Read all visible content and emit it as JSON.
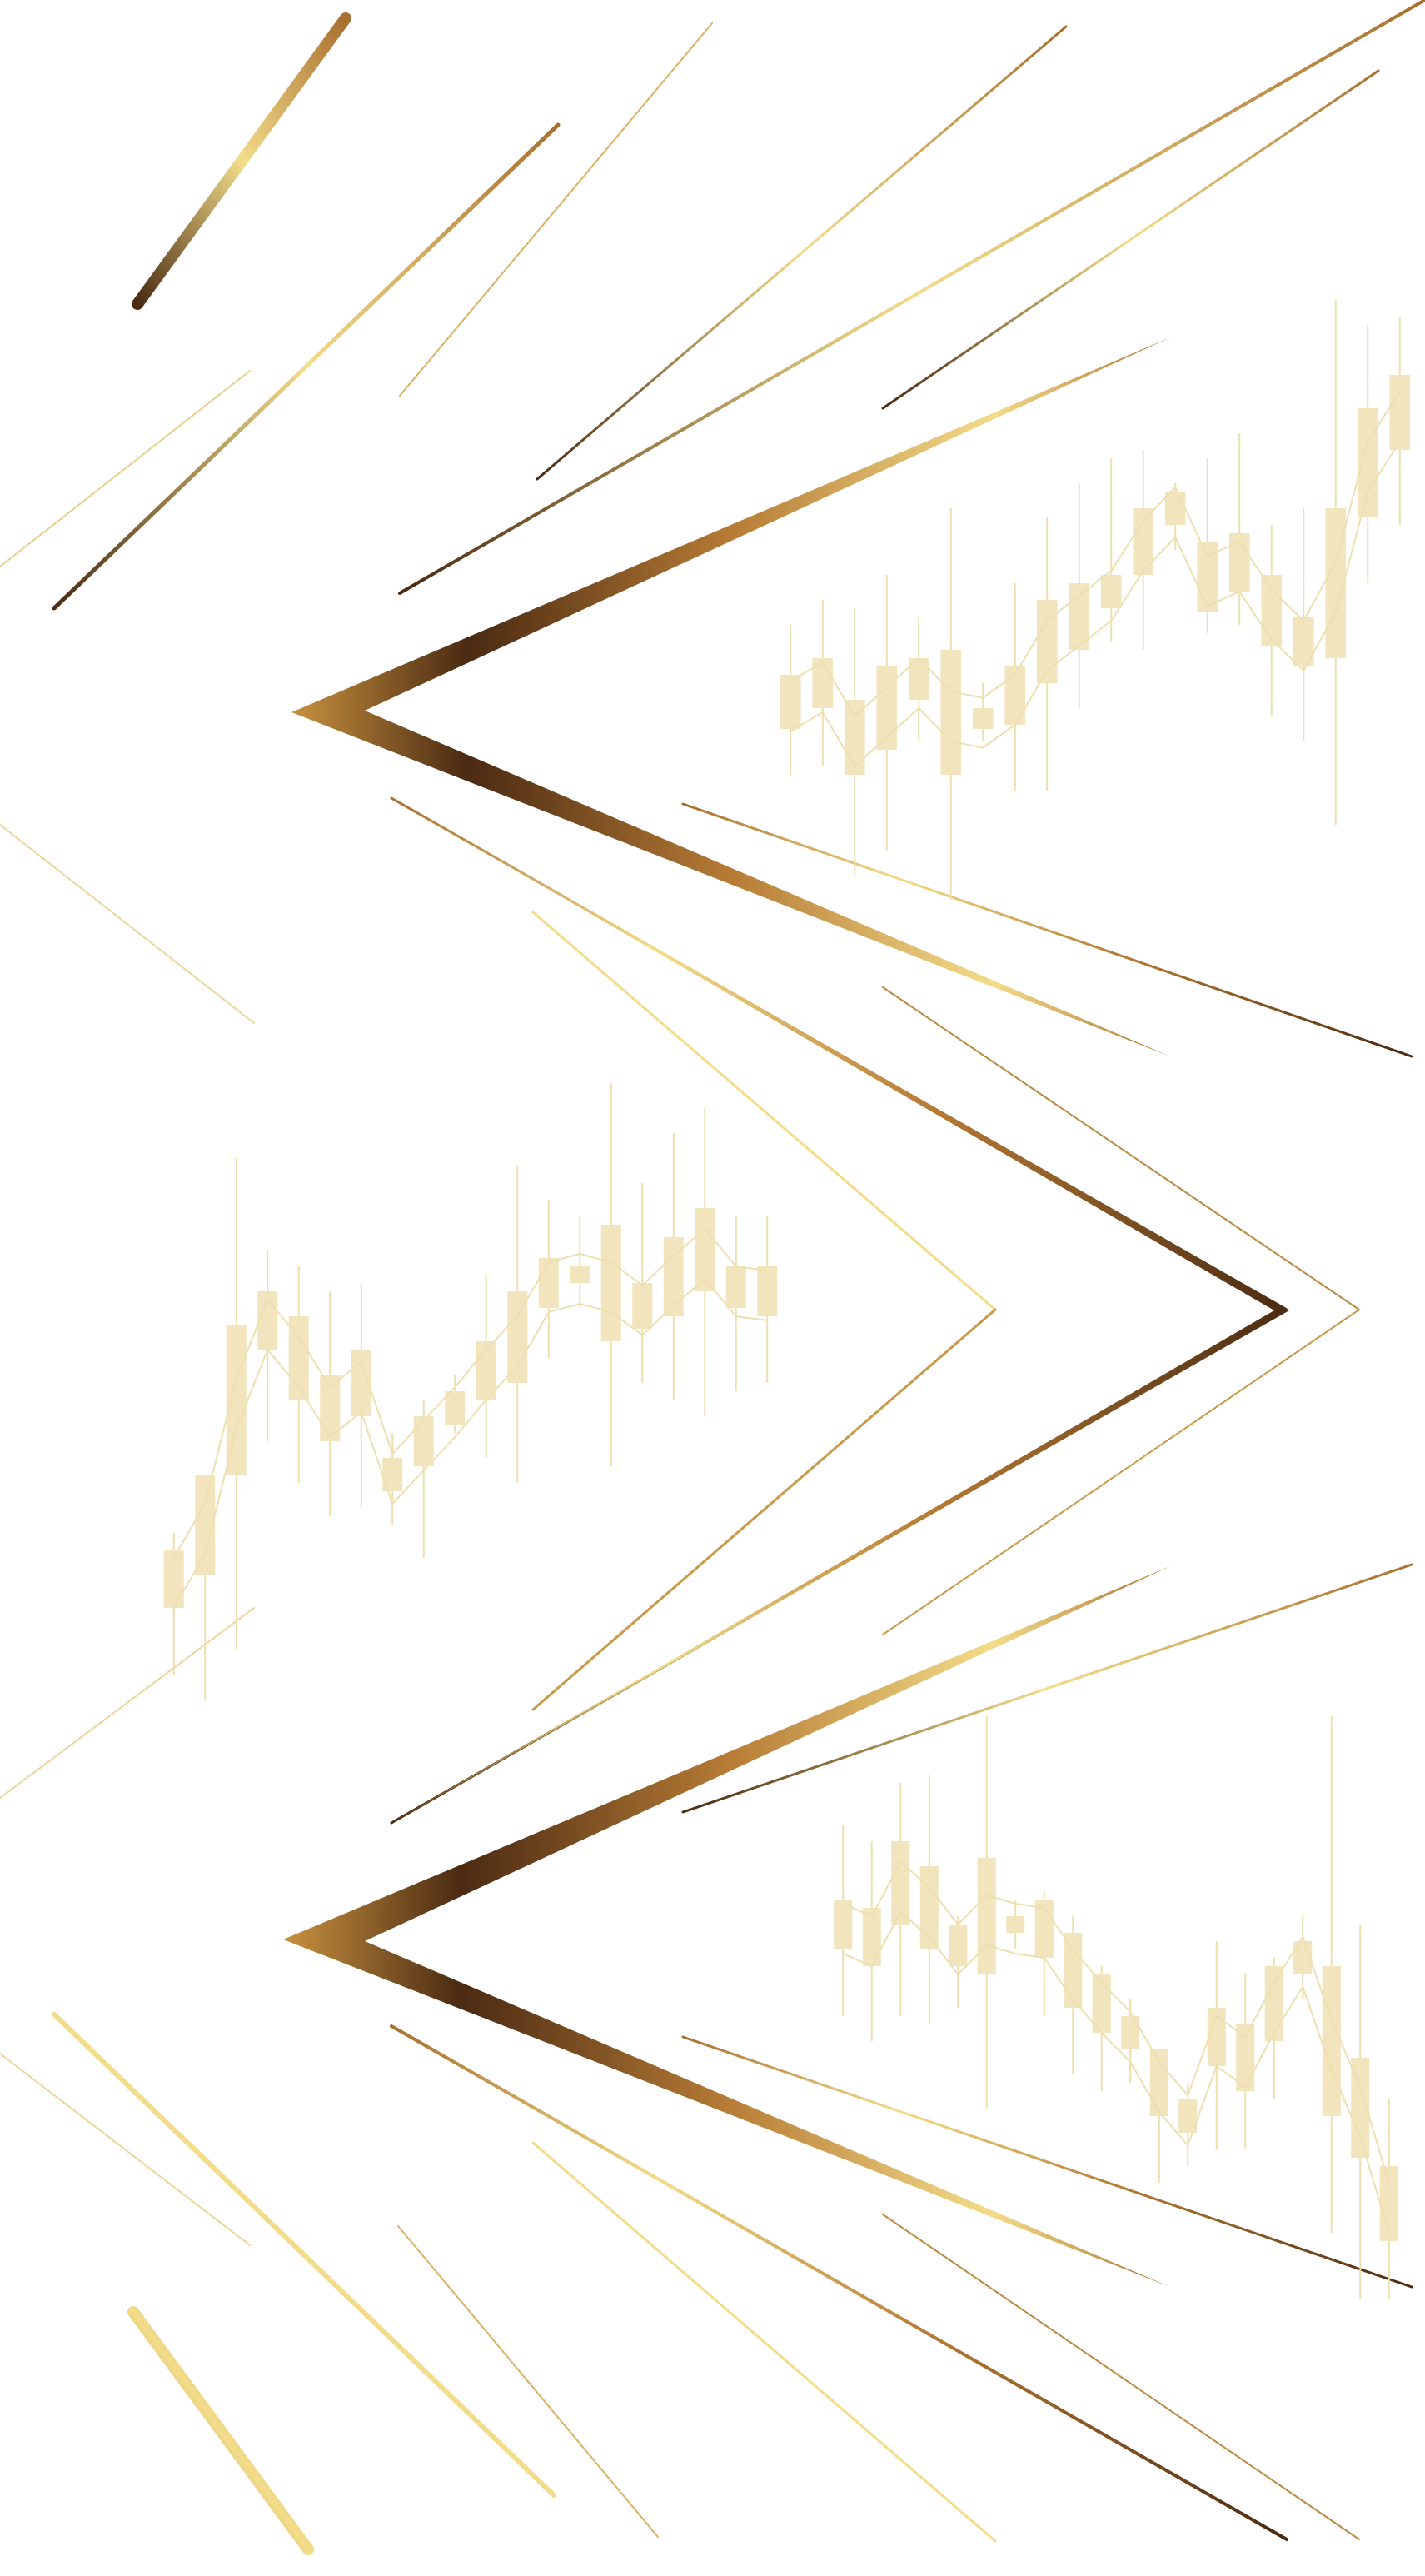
{
  "colors": {
    "background": "#ffffff",
    "gold_light": "#f3dc8a",
    "gold_mid": "#c9923f",
    "gold_dark": "#4a2a12",
    "candle": "#f2e5bd",
    "candle_line": "#eedfb0"
  },
  "decorations": {
    "icons": [
      "gold-chevron-left",
      "gold-chevron-right",
      "gold-chevron-left",
      "candlestick-chart-watermark",
      "gold-diagonal-stroke"
    ]
  }
}
